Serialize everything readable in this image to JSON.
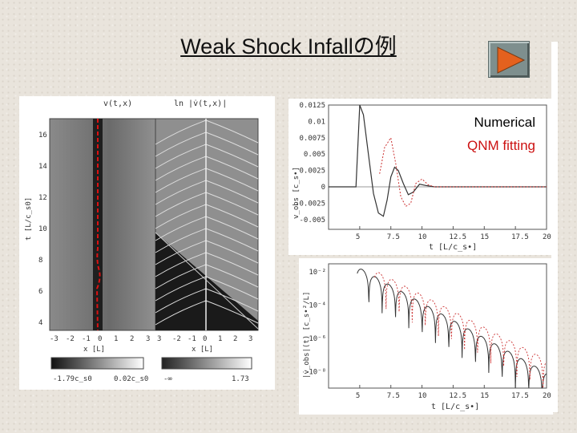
{
  "slide": {
    "title": "Weak Shock Infallの例"
  },
  "nav": {
    "next_icon": "play-triangle-icon",
    "colors": {
      "button": "#7e8f8e",
      "triangle": "#e4611e"
    }
  },
  "legend": {
    "numerical_label": "Numerical",
    "qnm_label": "QNM fitting",
    "colors": {
      "numerical": "#000000",
      "qnm": "#cc1111"
    }
  },
  "left_figure": {
    "title_left": "v(t,x)",
    "title_right": "ln |v̇(t,x)|",
    "ylabel": "t [L/c_s0]",
    "yticks": [
      "4",
      "6",
      "8",
      "10",
      "12",
      "14",
      "16"
    ],
    "xticks_left": [
      "-3",
      "-2",
      "-1",
      "0",
      "1",
      "2",
      "3"
    ],
    "xticks_right": [
      "3",
      "-2",
      "-1",
      "0",
      "1",
      "2",
      "3"
    ],
    "xlabel_left": "x [L]",
    "xlabel_right": "x [L]",
    "colorbar_left": {
      "min": "-1.79c_s0",
      "max": "0.02c_s0"
    },
    "colorbar_right": {
      "min": "-∞",
      "max": "1.73"
    }
  },
  "chart_data": [
    {
      "type": "line",
      "ylabel": "v_obs [c_s•]",
      "xlabel": "t [L/c_s•]",
      "xlim": [
        2.5,
        20
      ],
      "ylim": [
        -0.0065,
        0.0125
      ],
      "xticks": [
        "5",
        "7.5",
        "10",
        "12.5",
        "15",
        "17.5",
        "20"
      ],
      "yticks": [
        "0.0125",
        "0.01",
        "0.0075",
        "0.005",
        "0.0025",
        "0",
        "-0.0025",
        "-0.005"
      ],
      "series": [
        {
          "name": "Numerical",
          "x": [
            2.5,
            4.7,
            5.0,
            5.3,
            5.7,
            6.1,
            6.5,
            6.9,
            7.2,
            7.5,
            7.8,
            8.1,
            8.5,
            8.9,
            9.3,
            9.8,
            10.3,
            11,
            12,
            20
          ],
          "y": [
            0,
            0,
            0.0125,
            0.011,
            0.005,
            -0.001,
            -0.004,
            -0.0045,
            -0.002,
            0.0015,
            0.003,
            0.0025,
            0.0005,
            -0.0012,
            -0.0008,
            0.0004,
            0.0002,
            0,
            0,
            0
          ]
        },
        {
          "name": "QNM fitting",
          "x": [
            6.6,
            7.0,
            7.5,
            7.9,
            8.3,
            8.7,
            9.1,
            9.5,
            10.0,
            10.5,
            11,
            12,
            20
          ],
          "y": [
            0.002,
            0.006,
            0.0075,
            0.0035,
            -0.0015,
            -0.003,
            -0.0025,
            0.0005,
            0.0012,
            0.0003,
            0,
            0,
            0
          ]
        }
      ]
    },
    {
      "type": "line",
      "ylabel": "|v̇_obs|(t) [c_s•²/L]",
      "xlabel": "t [L/c_s•]",
      "yscale": "log",
      "xlim": [
        2.5,
        20
      ],
      "ylim": [
        1e-09,
        0.03
      ],
      "xticks": [
        "5",
        "7.5",
        "10",
        "12.5",
        "15",
        "17.5",
        "20"
      ],
      "yticks": [
        "10⁻²",
        "10⁻⁴",
        "10⁻⁶",
        "10⁻⁸"
      ],
      "series": [
        {
          "name": "Numerical",
          "envelope_start": 0.02,
          "decay_per_unit": 0.42,
          "node_spacing": 1.07,
          "start": 4.8
        },
        {
          "name": "QNM fitting",
          "envelope_start": 0.012,
          "decay_per_unit": 0.39,
          "node_spacing": 1.05,
          "start": 6.2
        }
      ]
    }
  ]
}
